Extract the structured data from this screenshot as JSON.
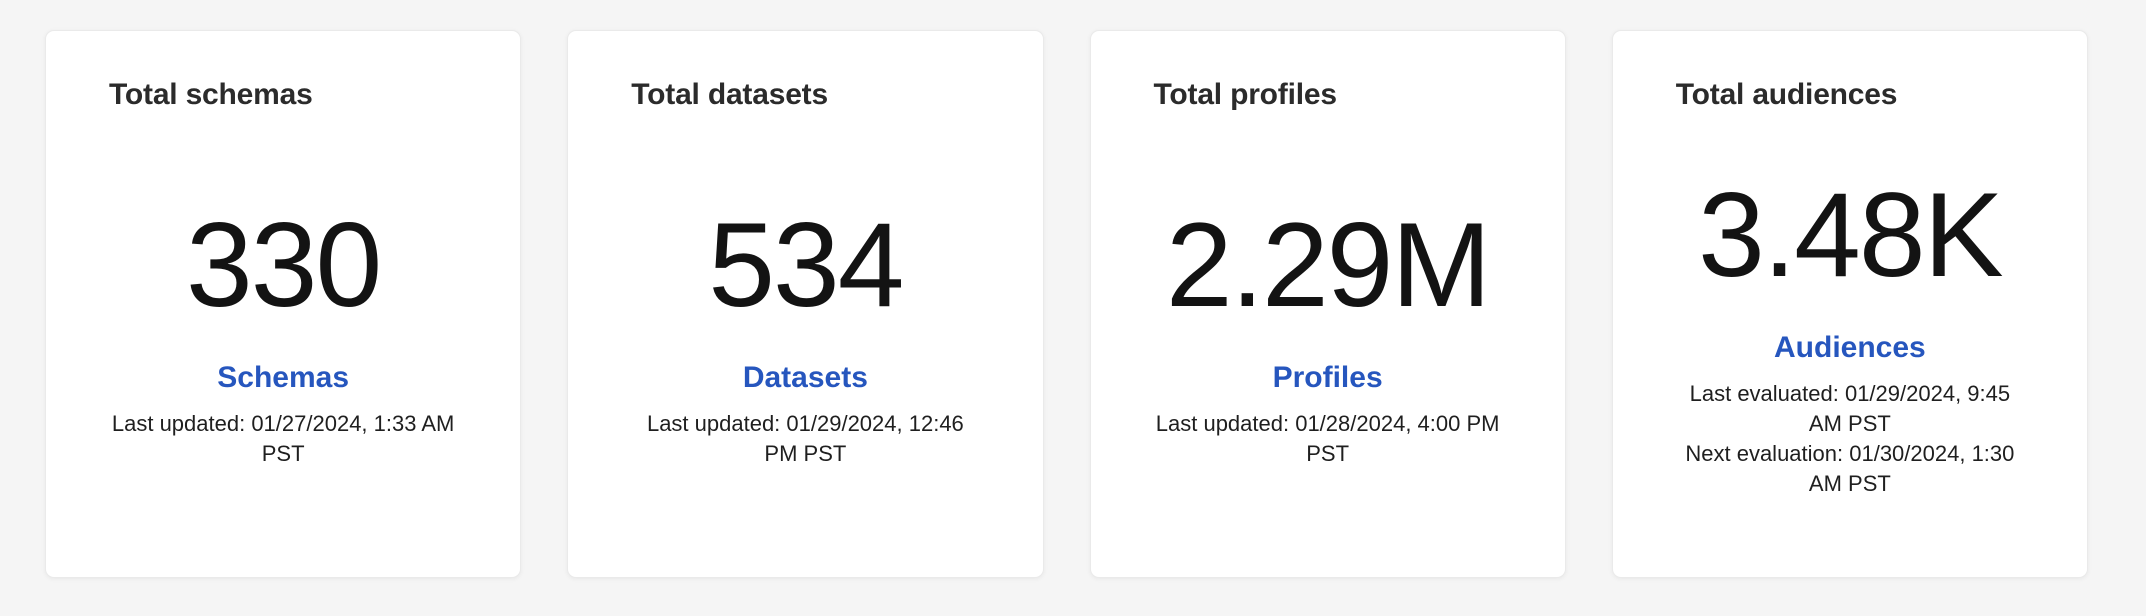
{
  "colors": {
    "page_background": "#f5f5f5",
    "card_background": "#ffffff",
    "title_text": "#2b2b2b",
    "metric_text": "#131313",
    "link_text": "#2656be",
    "caption_text": "#1f1f1f"
  },
  "cards": [
    {
      "title": "Total schemas",
      "metric": "330",
      "link_label": "Schemas",
      "captions": [
        "Last updated: 01/27/2024, 1:33 AM PST"
      ]
    },
    {
      "title": "Total datasets",
      "metric": "534",
      "link_label": "Datasets",
      "captions": [
        "Last updated: 01/29/2024, 12:46 PM PST"
      ]
    },
    {
      "title": "Total profiles",
      "metric": "2.29M",
      "link_label": "Profiles",
      "captions": [
        "Last updated: 01/28/2024, 4:00 PM PST"
      ]
    },
    {
      "title": "Total audiences",
      "metric": "3.48K",
      "link_label": "Audiences",
      "captions": [
        "Last evaluated: 01/29/2024, 9:45 AM PST",
        "Next evaluation: 01/30/2024, 1:30 AM PST"
      ]
    }
  ]
}
